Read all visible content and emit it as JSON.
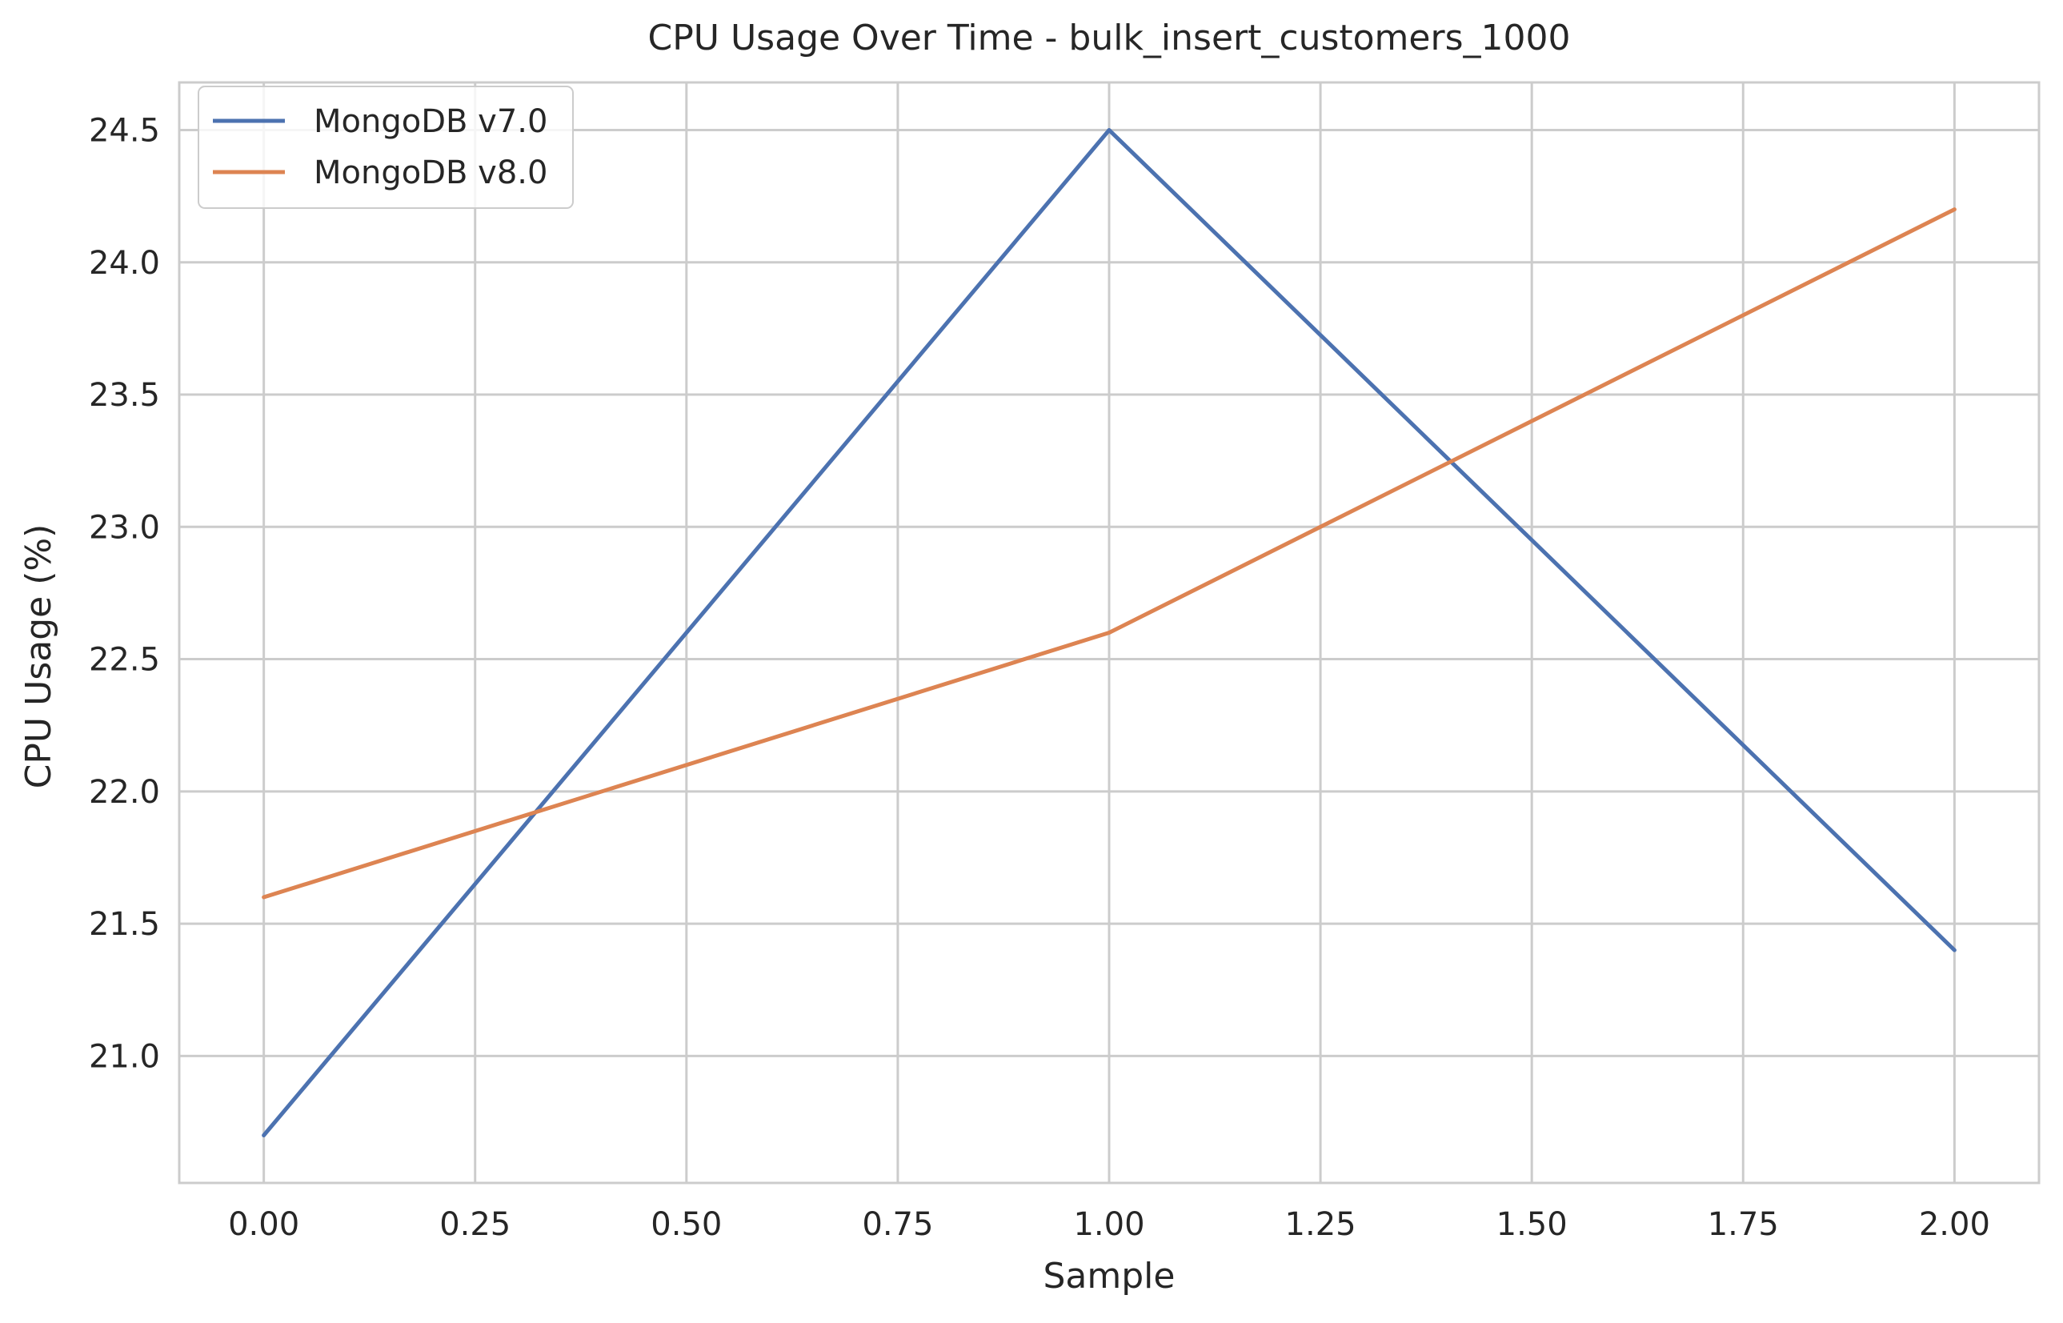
{
  "chart_data": {
    "type": "line",
    "title": "CPU Usage Over Time - bulk_insert_customers_1000",
    "xlabel": "Sample",
    "ylabel": "CPU Usage (%)",
    "x": [
      0,
      1,
      2
    ],
    "series": [
      {
        "name": "MongoDB v7.0",
        "values": [
          20.7,
          24.5,
          21.4
        ],
        "color": "#4c72b0"
      },
      {
        "name": "MongoDB v8.0",
        "values": [
          21.6,
          22.6,
          24.2
        ],
        "color": "#dd8452"
      }
    ],
    "xlim": [
      -0.1,
      2.1
    ],
    "ylim": [
      20.52,
      24.68
    ],
    "x_ticks": [
      0,
      0.25,
      0.5,
      0.75,
      1.0,
      1.25,
      1.5,
      1.75,
      2.0
    ],
    "x_tick_labels": [
      "0.00",
      "0.25",
      "0.50",
      "0.75",
      "1.00",
      "1.25",
      "1.50",
      "1.75",
      "2.00"
    ],
    "y_ticks": [
      21.0,
      21.5,
      22.0,
      22.5,
      23.0,
      23.5,
      24.0,
      24.5
    ],
    "y_tick_labels": [
      "21.0",
      "21.5",
      "22.0",
      "22.5",
      "23.0",
      "23.5",
      "24.0",
      "24.5"
    ],
    "grid": true,
    "legend_position": "top-left"
  },
  "style": {
    "grid_color": "#cccccc",
    "spine_color": "#cccccc",
    "text_color": "#262626",
    "background": "#ffffff"
  }
}
